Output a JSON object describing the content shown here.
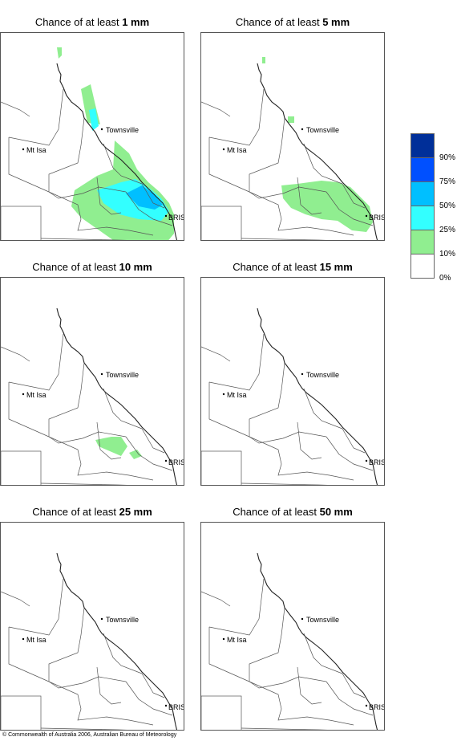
{
  "panels": [
    {
      "title_prefix": "Chance of at least ",
      "title_amount": "1 mm"
    },
    {
      "title_prefix": "Chance of at least ",
      "title_amount": "5 mm"
    },
    {
      "title_prefix": "Chance of at least ",
      "title_amount": "10 mm"
    },
    {
      "title_prefix": "Chance of at least ",
      "title_amount": "15 mm"
    },
    {
      "title_prefix": "Chance of at least ",
      "title_amount": "25 mm"
    },
    {
      "title_prefix": "Chance of at least ",
      "title_amount": "50 mm"
    }
  ],
  "map_labels": {
    "townsville": "Townsville",
    "mt_isa": "Mt Isa",
    "brisbane": "BRIS"
  },
  "legend": {
    "labels": [
      "90%",
      "75%",
      "50%",
      "25%",
      "10%",
      "0%"
    ],
    "colors": [
      "#002f99",
      "#0050ff",
      "#00bfff",
      "#33ffff",
      "#90ee90",
      "#ffffff"
    ]
  },
  "colors": {
    "low": "#90ee90",
    "mid": "#33ffff",
    "high": "#00bfff",
    "very_high": "#0050ff"
  },
  "copyright": "© Commonwealth of Australia 2006, Australian Bureau of Meteorology"
}
